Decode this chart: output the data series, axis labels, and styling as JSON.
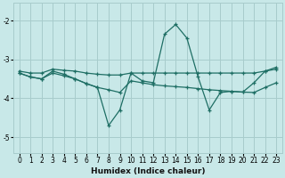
{
  "xlabel": "Humidex (Indice chaleur)",
  "bg_color": "#c8e8e8",
  "grid_color": "#a8cccc",
  "line_color": "#1e6e64",
  "xlim": [
    -0.5,
    23.5
  ],
  "ylim": [
    -5.4,
    -1.55
  ],
  "yticks": [
    -5,
    -4,
    -3,
    -2
  ],
  "xticks": [
    0,
    1,
    2,
    3,
    4,
    5,
    6,
    7,
    8,
    9,
    10,
    11,
    12,
    13,
    14,
    15,
    16,
    17,
    18,
    19,
    20,
    21,
    22,
    23
  ],
  "series_flat_x": [
    0,
    1,
    2,
    3,
    4,
    5,
    6,
    7,
    8,
    9,
    10,
    11,
    12,
    13,
    14,
    15,
    16,
    17,
    18,
    19,
    20,
    21,
    22,
    23
  ],
  "series_flat_y": [
    -3.3,
    -3.35,
    -3.35,
    -3.25,
    -3.28,
    -3.3,
    -3.35,
    -3.38,
    -3.4,
    -3.4,
    -3.35,
    -3.35,
    -3.35,
    -3.35,
    -3.35,
    -3.35,
    -3.35,
    -3.35,
    -3.35,
    -3.35,
    -3.35,
    -3.35,
    -3.3,
    -3.25
  ],
  "series_diag_x": [
    0,
    1,
    2,
    3,
    4,
    5,
    6,
    7,
    8,
    9,
    10,
    11,
    12,
    13,
    14,
    15,
    16,
    17,
    18,
    19,
    20,
    21,
    22,
    23
  ],
  "series_diag_y": [
    -3.35,
    -3.45,
    -3.5,
    -3.35,
    -3.42,
    -3.5,
    -3.62,
    -3.72,
    -3.78,
    -3.85,
    -3.55,
    -3.6,
    -3.65,
    -3.68,
    -3.7,
    -3.72,
    -3.75,
    -3.78,
    -3.8,
    -3.82,
    -3.84,
    -3.85,
    -3.72,
    -3.6
  ],
  "series_wave_x": [
    0,
    1,
    2,
    3,
    4,
    5,
    6,
    7,
    8,
    9,
    10,
    11,
    12,
    13,
    14,
    15,
    16,
    17,
    18,
    19,
    20,
    21,
    22,
    23
  ],
  "series_wave_y": [
    -3.35,
    -3.45,
    -3.5,
    -3.3,
    -3.38,
    -3.5,
    -3.62,
    -3.72,
    -4.7,
    -4.3,
    -3.35,
    -3.55,
    -3.6,
    -2.35,
    -2.1,
    -2.45,
    -3.45,
    -4.3,
    -3.85,
    -3.82,
    -3.84,
    -3.6,
    -3.3,
    -3.2
  ]
}
